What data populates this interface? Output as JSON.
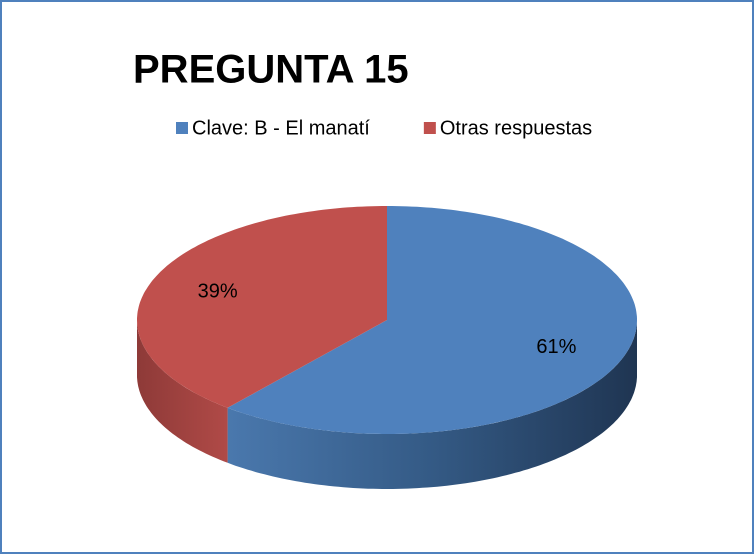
{
  "chart_data": {
    "type": "pie",
    "title": "PREGUNTA 15",
    "categories": [
      "Clave: B - El manatí",
      "Otras respuestas"
    ],
    "values": [
      61,
      39
    ],
    "value_labels": [
      "61%",
      "39%"
    ],
    "colors": [
      "#4f81bd",
      "#c0504d"
    ],
    "legend": "top",
    "view": "3d"
  }
}
